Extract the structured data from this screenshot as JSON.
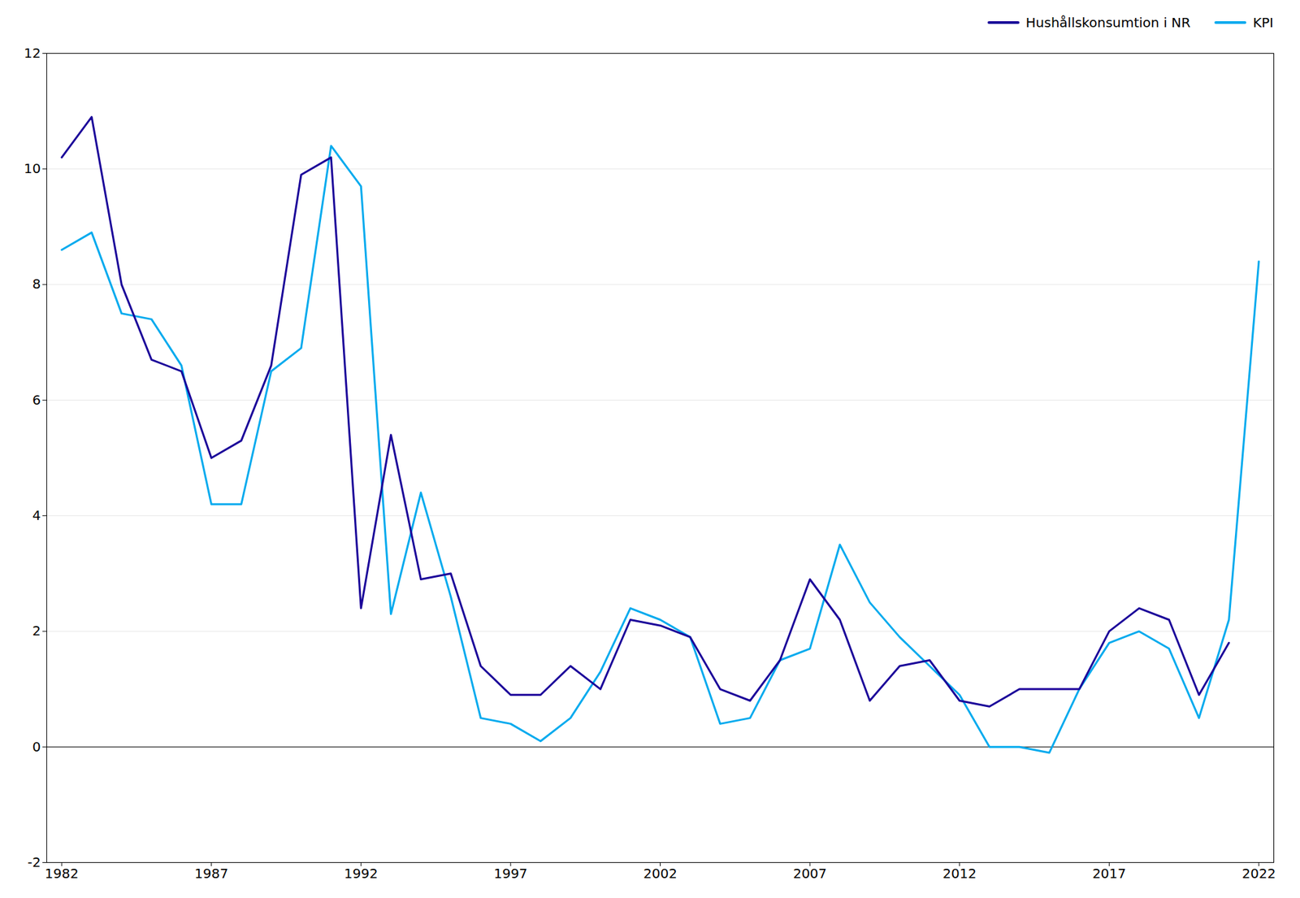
{
  "chart_data": {
    "type": "line",
    "x": [
      1982,
      1983,
      1984,
      1985,
      1986,
      1987,
      1988,
      1989,
      1990,
      1991,
      1992,
      1993,
      1994,
      1995,
      1996,
      1997,
      1998,
      1999,
      2000,
      2001,
      2002,
      2003,
      2004,
      2005,
      2006,
      2007,
      2008,
      2009,
      2010,
      2011,
      2012,
      2013,
      2014,
      2015,
      2016,
      2017,
      2018,
      2019,
      2020,
      2021,
      2022
    ],
    "series": [
      {
        "name": "Hushållskonsumtion i NR",
        "color": "#1a0099",
        "values": [
          10.2,
          10.9,
          8.0,
          6.7,
          6.5,
          5.0,
          5.3,
          6.6,
          9.9,
          10.2,
          2.4,
          5.4,
          2.9,
          3.0,
          1.4,
          0.9,
          0.9,
          1.4,
          1.0,
          2.2,
          2.1,
          1.9,
          1.0,
          0.8,
          1.5,
          2.9,
          2.2,
          0.8,
          1.4,
          1.5,
          0.8,
          0.7,
          1.0,
          1.0,
          1.0,
          2.0,
          2.4,
          2.2,
          0.9,
          1.8,
          null
        ]
      },
      {
        "name": "KPI",
        "color": "#00aaee",
        "values": [
          8.6,
          8.9,
          7.5,
          7.4,
          6.6,
          4.2,
          4.2,
          6.5,
          6.9,
          10.4,
          9.7,
          2.3,
          4.4,
          2.6,
          0.5,
          0.4,
          0.1,
          0.5,
          1.3,
          2.4,
          2.2,
          1.9,
          0.4,
          0.5,
          1.5,
          1.7,
          3.5,
          2.5,
          1.9,
          1.4,
          0.9,
          0.0,
          0.0,
          -0.1,
          1.0,
          1.8,
          2.0,
          1.7,
          0.5,
          2.2,
          8.4
        ]
      }
    ],
    "xlim": [
      1981.5,
      2022.5
    ],
    "ylim": [
      -2,
      12
    ],
    "xticks": [
      1982,
      1987,
      1992,
      1997,
      2002,
      2007,
      2012,
      2017,
      2022
    ],
    "yticks": [
      -2,
      0,
      2,
      4,
      6,
      8,
      10,
      12
    ],
    "grid": true,
    "legend": "upper right"
  }
}
